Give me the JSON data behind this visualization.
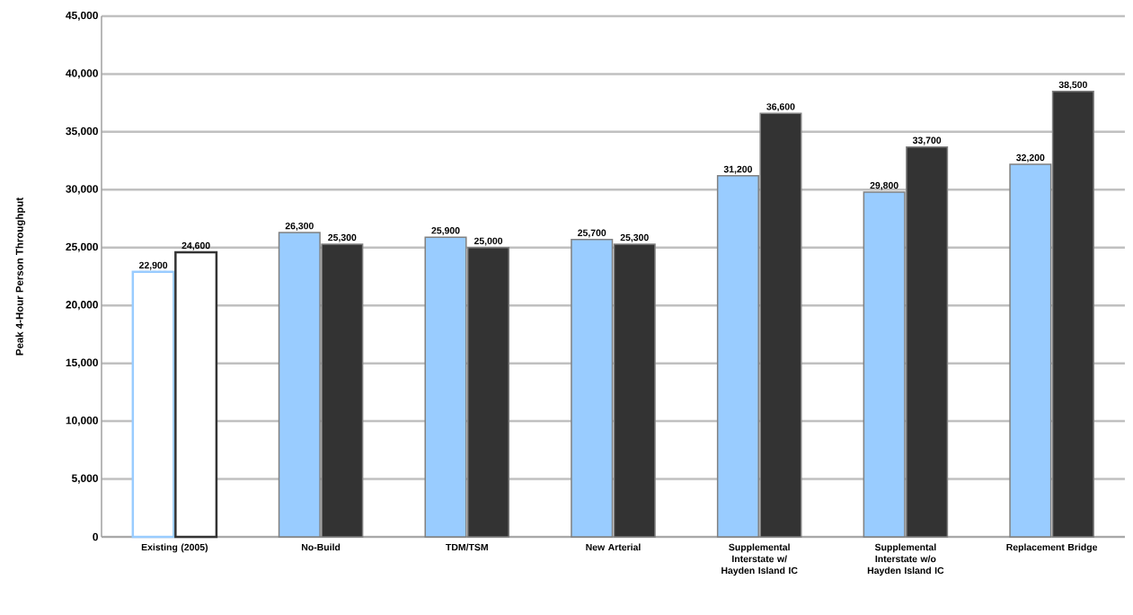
{
  "chart_data": {
    "type": "bar",
    "ylabel": "Peak 4-Hour Person Throughput",
    "categories": [
      "Existing (2005)",
      "No-Build",
      "TDM/TSM",
      "New Arterial",
      "Supplemental Interstate w/ Hayden Island IC",
      "Supplemental Interstate w/o Hayden Island IC",
      "Replacement Bridge"
    ],
    "series": [
      {
        "color": "#99ccff",
        "colors": [
          "#ffffff",
          "#99ccff",
          "#99ccff",
          "#99ccff",
          "#99ccff",
          "#99ccff",
          "#99ccff"
        ],
        "values": [
          22900,
          26300,
          25900,
          25700,
          31200,
          29800,
          32200
        ],
        "value_labels": [
          "22,900",
          "26,300",
          "25,900",
          "25,700",
          "31,200",
          "29,800",
          "32,200"
        ]
      },
      {
        "color": "#333333",
        "colors": [
          "#ffffff",
          "#333333",
          "#333333",
          "#333333",
          "#333333",
          "#333333",
          "#333333"
        ],
        "values": [
          24600,
          25300,
          25000,
          25300,
          36600,
          33700,
          38500
        ],
        "value_labels": [
          "24,600",
          "25,300",
          "25,000",
          "25,300",
          "36,600",
          "33,700",
          "38,500"
        ]
      }
    ],
    "ylim": [
      0,
      45000
    ],
    "yticks": [
      {
        "value": 0,
        "label": "0"
      },
      {
        "value": 5000,
        "label": "5,000"
      },
      {
        "value": 10000,
        "label": "10,000"
      },
      {
        "value": 15000,
        "label": "15,000"
      },
      {
        "value": 20000,
        "label": "20,000"
      },
      {
        "value": 25000,
        "label": "25,000"
      },
      {
        "value": 30000,
        "label": "30,000"
      },
      {
        "value": 35000,
        "label": "35,000"
      },
      {
        "value": 40000,
        "label": "40,000"
      },
      {
        "value": 45000,
        "label": "45,000"
      }
    ],
    "grid": "y"
  }
}
